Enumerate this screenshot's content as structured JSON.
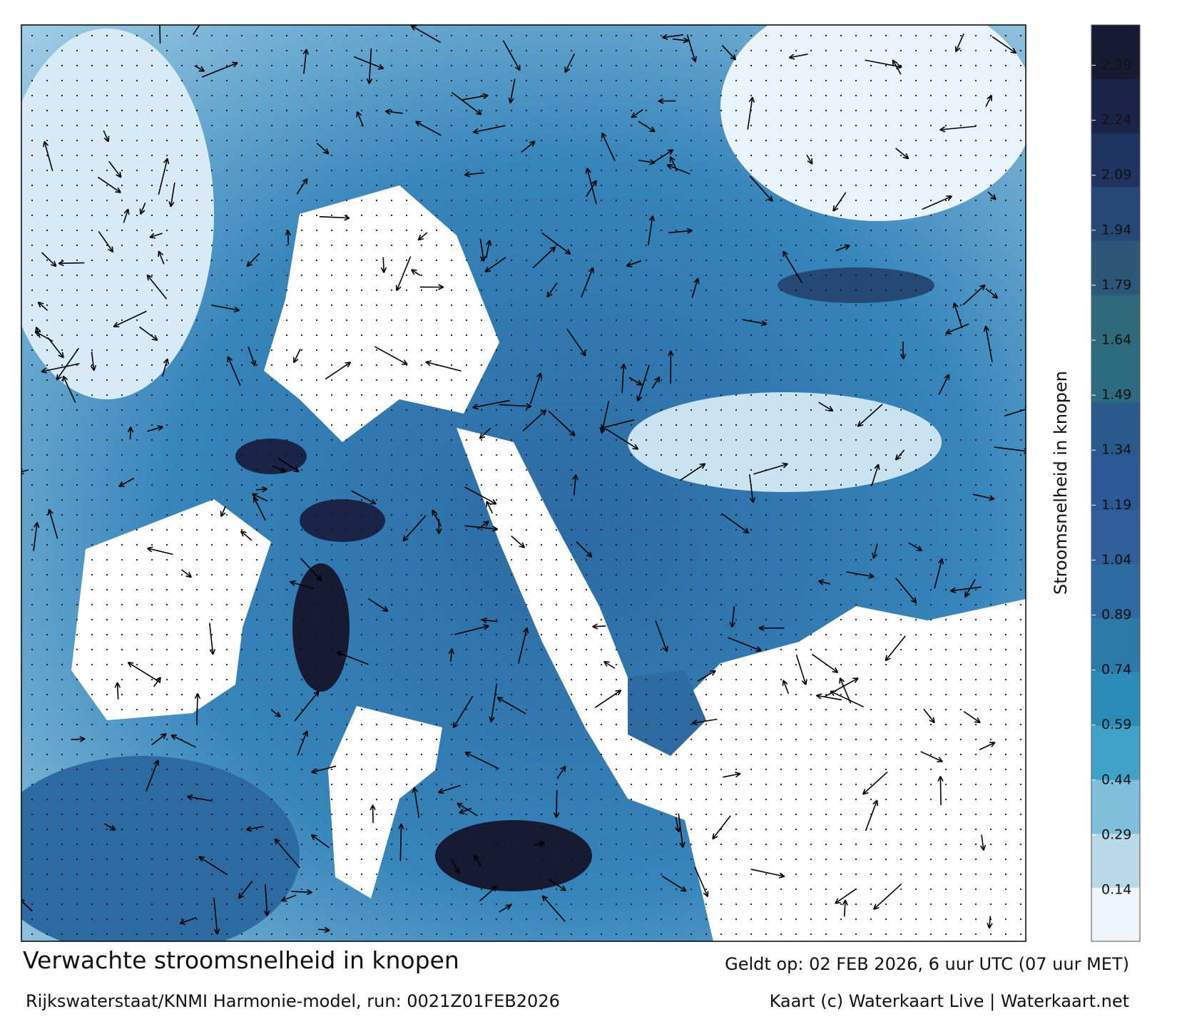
{
  "title": "Verwachte stroomsnelheid in knopen",
  "subtitle": "Rijkswaterstaat/KNMI Harmonie-model, run: 0021Z01FEB2026",
  "valid_time": "Geldt op: 02 FEB 2026, 6 uur UTC (07 uur MET)",
  "credit": "Kaart (c) Waterkaart Live | Waterkaart.net",
  "colorbar": {
    "label": "Stroomsnelheid in knopen",
    "lim": [
      0,
      2.5
    ],
    "ticks": [
      0.14,
      0.29,
      0.44,
      0.59,
      0.74,
      0.89,
      1.04,
      1.19,
      1.34,
      1.49,
      1.64,
      1.79,
      1.94,
      2.09,
      2.24,
      2.39
    ],
    "colors": [
      "#eef4f8",
      "#b9d8e8",
      "#7fbfdb",
      "#3fa2c8",
      "#2a8db8",
      "#2b7aa7",
      "#2d6a9f",
      "#2e5f98",
      "#2b5995",
      "#285a8c",
      "#2d6c80",
      "#2f6a7a",
      "#2c5778",
      "#254874",
      "#1f3561",
      "#1a2447",
      "#171a33"
    ]
  }
}
